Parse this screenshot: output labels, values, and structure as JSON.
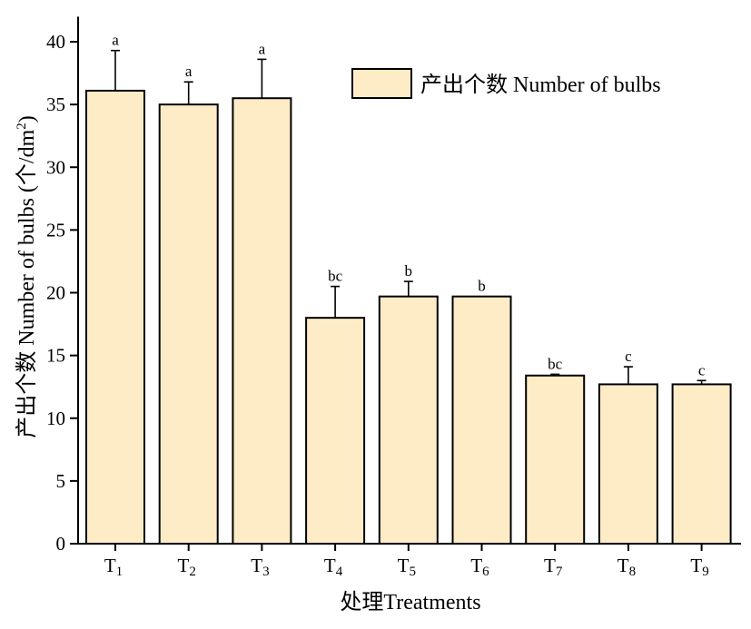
{
  "chart_data": {
    "type": "bar",
    "categories": [
      "T1",
      "T2",
      "T3",
      "T4",
      "T5",
      "T6",
      "T7",
      "T8",
      "T9"
    ],
    "category_labels": [
      {
        "main": "T",
        "sub": "1"
      },
      {
        "main": "T",
        "sub": "2"
      },
      {
        "main": "T",
        "sub": "3"
      },
      {
        "main": "T",
        "sub": "4"
      },
      {
        "main": "T",
        "sub": "5"
      },
      {
        "main": "T",
        "sub": "6"
      },
      {
        "main": "T",
        "sub": "7"
      },
      {
        "main": "T",
        "sub": "8"
      },
      {
        "main": "T",
        "sub": "9"
      }
    ],
    "series": [
      {
        "name": "产出个数 Number of bulbs",
        "values": [
          36.1,
          35.0,
          35.5,
          18.0,
          19.7,
          19.7,
          13.4,
          12.7,
          12.7
        ],
        "errors": [
          3.2,
          1.8,
          3.1,
          2.5,
          1.2,
          0.0,
          0.1,
          1.4,
          0.3
        ],
        "significance": [
          "a",
          "a",
          "a",
          "bc",
          "b",
          "b",
          "bc",
          "c",
          "c"
        ]
      }
    ],
    "ylim": [
      0,
      42
    ],
    "yticks": [
      0,
      5,
      10,
      15,
      20,
      25,
      30,
      35,
      40
    ],
    "xlabel": "处理Treatments",
    "ylabel": {
      "main": "产出个数 Number of bulbs (个/dm",
      "sup": "2",
      "close": ")"
    },
    "legend_position": "top-right",
    "bar_color": "#fdecc6",
    "edge_color": "#000000",
    "grid": false
  }
}
